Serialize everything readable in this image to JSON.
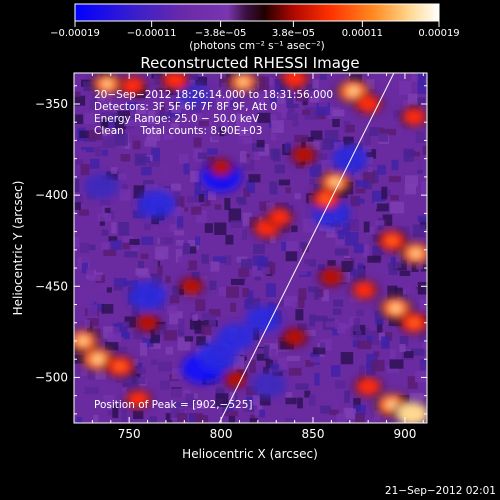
{
  "colorbar": {
    "tick_labels": [
      "−0.00019",
      "−0.00011",
      "−3.8e−05",
      "3.8e−05",
      "0.00011",
      "0.00019"
    ],
    "tick_values": [
      -0.00019,
      -0.00011,
      -3.8e-05,
      3.8e-05,
      0.00011,
      0.00019
    ],
    "range": [
      -0.00019,
      0.00019
    ],
    "units_label": "(photons cm⁻² s⁻¹ asec⁻²)"
  },
  "plot": {
    "title": "Reconstructed RHESSI Image",
    "info_lines": [
      "20−Sep−2012 18:26:14.000 to 18:31:56.000",
      "Detectors: 3F 5F 6F 7F 8F 9F, Att 0",
      "Energy Range: 25.0 − 50.0 keV",
      "Clean     Total counts: 8.90E+03"
    ],
    "peak_label": "Position of Peak = [902,−525]"
  },
  "footer": {
    "timestamp": "21−Sep−2012 02:01"
  },
  "chart_data": {
    "type": "heatmap",
    "title": "Reconstructed RHESSI Image",
    "xlabel": "Heliocentric X (arcsec)",
    "ylabel": "Heliocentric Y (arcsec)",
    "xlim": [
      720,
      912
    ],
    "ylim": [
      -525,
      -333
    ],
    "xticks": [
      750,
      800,
      850,
      900
    ],
    "yticks": [
      -350,
      -400,
      -450,
      -500
    ],
    "xtick_labels": [
      "750",
      "800",
      "850",
      "900"
    ],
    "ytick_labels": [
      "−350",
      "−400",
      "−450",
      "−500"
    ],
    "limb_line": [
      [
        799,
        -525
      ],
      [
        894,
        -333
      ]
    ],
    "peak_position": [
      902,
      -525
    ],
    "colormap": [
      "#0000ff",
      "#4020c8",
      "#602090",
      "#7a35b0",
      "#7020a0",
      "#300010",
      "#c01000",
      "#ff3010",
      "#ff8030",
      "#ffd890",
      "#ffffff"
    ],
    "hot_spots": [
      {
        "x": 738,
        "y": -339,
        "v": 0.00013
      },
      {
        "x": 752,
        "y": -340,
        "v": 0.0001
      },
      {
        "x": 775,
        "y": -337,
        "v": 0.00011
      },
      {
        "x": 812,
        "y": -338,
        "v": 0.00013
      },
      {
        "x": 840,
        "y": -336,
        "v": 0.00011
      },
      {
        "x": 872,
        "y": -343,
        "v": 0.00016
      },
      {
        "x": 880,
        "y": -350,
        "v": 0.0001
      },
      {
        "x": 845,
        "y": -378,
        "v": 8e-05
      },
      {
        "x": 862,
        "y": -393,
        "v": 0.00014
      },
      {
        "x": 857,
        "y": -402,
        "v": 0.00012
      },
      {
        "x": 800,
        "y": -385,
        "v": 7e-05
      },
      {
        "x": 825,
        "y": -418,
        "v": 0.00011
      },
      {
        "x": 832,
        "y": -412,
        "v": 9e-05
      },
      {
        "x": 893,
        "y": -425,
        "v": 0.00012
      },
      {
        "x": 906,
        "y": -432,
        "v": 0.00014
      },
      {
        "x": 895,
        "y": -462,
        "v": 0.00015
      },
      {
        "x": 905,
        "y": -470,
        "v": 0.00012
      },
      {
        "x": 878,
        "y": -452,
        "v": 9e-05
      },
      {
        "x": 860,
        "y": -445,
        "v": 8e-05
      },
      {
        "x": 725,
        "y": -480,
        "v": 0.00014
      },
      {
        "x": 733,
        "y": -490,
        "v": 0.00016
      },
      {
        "x": 745,
        "y": -494,
        "v": 0.00012
      },
      {
        "x": 760,
        "y": -470,
        "v": 7e-05
      },
      {
        "x": 755,
        "y": -512,
        "v": 9e-05
      },
      {
        "x": 784,
        "y": -450,
        "v": 7e-05
      },
      {
        "x": 840,
        "y": -478,
        "v": 8e-05
      },
      {
        "x": 808,
        "y": -501,
        "v": 6e-05
      },
      {
        "x": 893,
        "y": -515,
        "v": 0.00016
      },
      {
        "x": 904,
        "y": -520,
        "v": 0.00019
      },
      {
        "x": 880,
        "y": -505,
        "v": 0.0001
      },
      {
        "x": 905,
        "y": -357,
        "v": 9e-05
      }
    ],
    "cold_spots": [
      {
        "x": 800,
        "y": -390,
        "v": -0.00012
      },
      {
        "x": 765,
        "y": -405,
        "v": -0.0001
      },
      {
        "x": 790,
        "y": -495,
        "v": -0.00013
      },
      {
        "x": 798,
        "y": -488,
        "v": -0.00011
      },
      {
        "x": 808,
        "y": -478,
        "v": -9e-05
      },
      {
        "x": 760,
        "y": -455,
        "v": -0.0001
      },
      {
        "x": 860,
        "y": -410,
        "v": -0.0001
      },
      {
        "x": 870,
        "y": -380,
        "v": -8e-05
      },
      {
        "x": 735,
        "y": -395,
        "v": -7e-05
      },
      {
        "x": 823,
        "y": -468,
        "v": -8e-05
      },
      {
        "x": 785,
        "y": -345,
        "v": -6e-05
      },
      {
        "x": 826,
        "y": -504,
        "v": -7e-05
      }
    ]
  }
}
